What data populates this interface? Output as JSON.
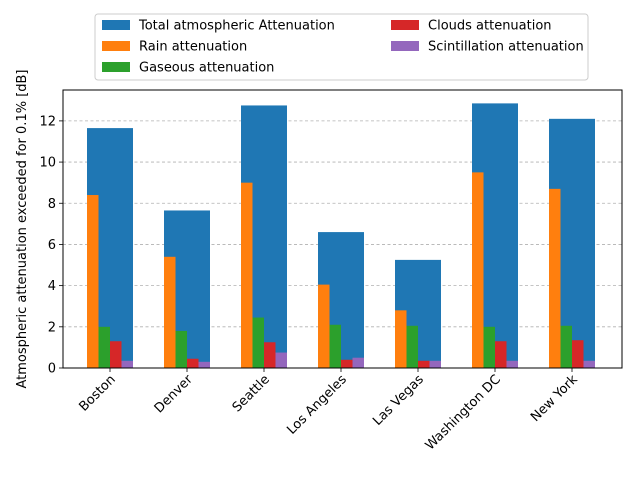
{
  "chart_data": {
    "type": "bar",
    "title": "",
    "xlabel": "",
    "ylabel": "Atmospheric attenuation exceeded for 0.1% [dB]",
    "ylim": [
      0,
      13.5
    ],
    "yticks": [
      0,
      2,
      4,
      6,
      8,
      10,
      12
    ],
    "grid": true,
    "legend_position": "top-center",
    "categories": [
      "Boston",
      "Denver",
      "Seattle",
      "Los Angeles",
      "Las Vegas",
      "Washington DC",
      "New York"
    ],
    "series": [
      {
        "name": "Total atmospheric Attenuation",
        "color": "#1f77b4",
        "values": [
          11.65,
          7.65,
          12.75,
          6.6,
          5.25,
          12.85,
          12.1
        ]
      },
      {
        "name": "Rain attenuation",
        "color": "#ff7f0e",
        "values": [
          8.4,
          5.4,
          9.0,
          4.05,
          2.8,
          9.5,
          8.7
        ]
      },
      {
        "name": "Gaseous attenuation",
        "color": "#2ca02c",
        "values": [
          2.0,
          1.8,
          2.45,
          2.1,
          2.05,
          2.0,
          2.05
        ]
      },
      {
        "name": "Clouds attenuation",
        "color": "#d62728",
        "values": [
          1.3,
          0.45,
          1.25,
          0.4,
          0.35,
          1.3,
          1.35
        ]
      },
      {
        "name": "Scintillation attenuation",
        "color": "#9467bd",
        "values": [
          0.35,
          0.3,
          0.75,
          0.5,
          0.35,
          0.35,
          0.35
        ]
      }
    ]
  }
}
